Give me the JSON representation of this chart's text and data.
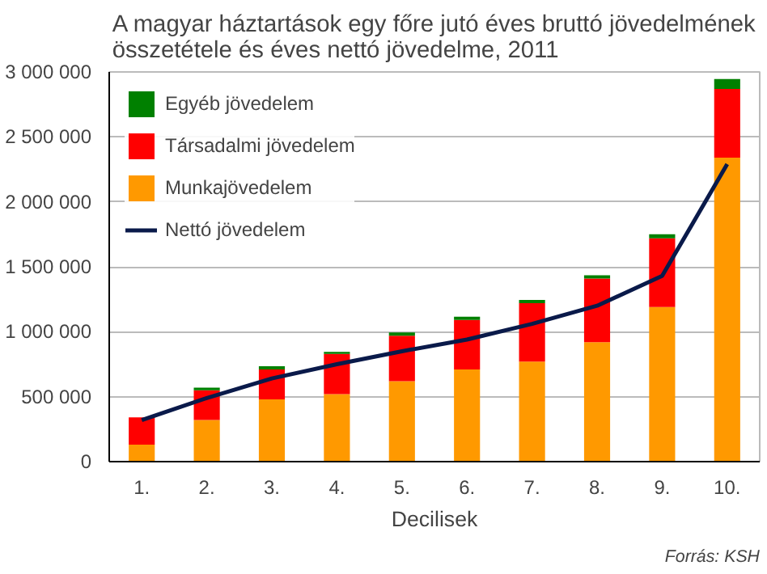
{
  "chart_data": {
    "type": "bar",
    "stacked": true,
    "title": "A magyar háztartások egy főre jutó éves bruttó jövedelmének\nösszetétele és éves nettó jövedelme, 2011",
    "xlabel": "Decilisek",
    "categories": [
      "1.",
      "2.",
      "3.",
      "4.",
      "5.",
      "6.",
      "7.",
      "8.",
      "9.",
      "10."
    ],
    "series": [
      {
        "name": "Munkajövedelem",
        "color": "#ff9900",
        "values": [
          130000,
          320000,
          480000,
          520000,
          620000,
          710000,
          770000,
          920000,
          1190000,
          2340000
        ]
      },
      {
        "name": "Társadalmi jövedelem",
        "color": "#ff0000",
        "values": [
          210000,
          230000,
          230000,
          310000,
          350000,
          380000,
          450000,
          490000,
          530000,
          530000
        ]
      },
      {
        "name": "Egyéb jövedelem",
        "color": "#008000",
        "values": [
          null,
          20000,
          25000,
          15000,
          25000,
          25000,
          25000,
          25000,
          30000,
          75000
        ]
      },
      {
        "name": "Nettó jövedelem",
        "type": "line",
        "color": "#0a1a4a",
        "values": [
          320000,
          490000,
          640000,
          750000,
          850000,
          940000,
          1060000,
          1200000,
          1430000,
          2290000
        ]
      }
    ],
    "ylim": [
      0,
      3000000
    ],
    "yticks": [
      {
        "value": 0,
        "label": "0"
      },
      {
        "value": 500000,
        "label": "500 000"
      },
      {
        "value": 1000000,
        "label": "1 000 000"
      },
      {
        "value": 1500000,
        "label": "1 500 000"
      },
      {
        "value": 2000000,
        "label": "2 000 000"
      },
      {
        "value": 2500000,
        "label": "2 500 000"
      },
      {
        "value": 3000000,
        "label": "3 000 000"
      }
    ],
    "grid": "y",
    "legend": "top left",
    "annotations": [
      "Forrás: KSH"
    ]
  }
}
